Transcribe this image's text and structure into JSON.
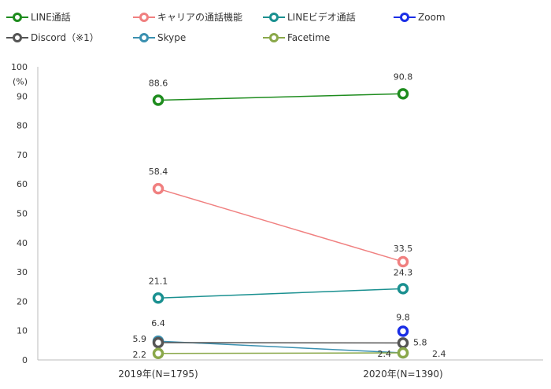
{
  "chart_data": {
    "type": "line",
    "unit_label": "(%)",
    "categories": [
      "2019年(N=1795)",
      "2020年(N=1390)"
    ],
    "ylim": [
      0,
      100
    ],
    "yticks": [
      0,
      10,
      20,
      30,
      40,
      50,
      60,
      70,
      80,
      90,
      100
    ],
    "grid": false,
    "legend_position": "top",
    "series": [
      {
        "name": "LINE通話",
        "color": "#1e8c1e",
        "values": [
          88.6,
          90.8
        ]
      },
      {
        "name": "キャリアの通話機能",
        "color": "#f08080",
        "values": [
          58.4,
          33.5
        ]
      },
      {
        "name": "LINEビデオ通話",
        "color": "#1a9090",
        "values": [
          21.1,
          24.3
        ]
      },
      {
        "name": "Zoom",
        "color": "#1a2ee6",
        "values": [
          null,
          9.8
        ]
      },
      {
        "name": "Discord（※1）",
        "color": "#555555",
        "values": [
          5.9,
          5.8
        ]
      },
      {
        "name": "Skype",
        "color": "#3a90b0",
        "values": [
          6.4,
          2.4
        ]
      },
      {
        "name": "Facetime",
        "color": "#8aa84a",
        "values": [
          2.2,
          2.4
        ]
      }
    ],
    "data_labels": [
      {
        "series": 0,
        "point": 0,
        "text": "88.6"
      },
      {
        "series": 0,
        "point": 1,
        "text": "90.8"
      },
      {
        "series": 1,
        "point": 0,
        "text": "58.4"
      },
      {
        "series": 1,
        "point": 1,
        "text": "33.5"
      },
      {
        "series": 2,
        "point": 0,
        "text": "21.1"
      },
      {
        "series": 2,
        "point": 1,
        "text": "24.3"
      },
      {
        "series": 3,
        "point": 1,
        "text": "9.8"
      },
      {
        "series": 4,
        "point": 0,
        "text": "5.9"
      },
      {
        "series": 4,
        "point": 1,
        "text": "5.8"
      },
      {
        "series": 5,
        "point": 0,
        "text": "6.4"
      },
      {
        "series": 5,
        "point": 1,
        "text": "2.4"
      },
      {
        "series": 6,
        "point": 0,
        "text": "2.2"
      },
      {
        "series": 6,
        "point": 1,
        "text": "2.4"
      }
    ]
  }
}
